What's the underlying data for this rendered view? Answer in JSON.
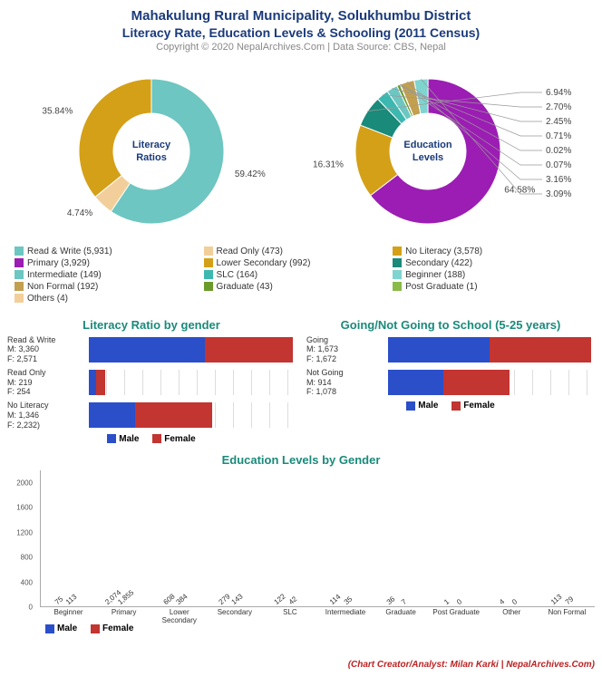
{
  "header": {
    "title1": "Mahakulung Rural Municipality, Solukhumbu District",
    "title2": "Literacy Rate, Education Levels & Schooling (2011 Census)",
    "copyright": "Copyright © 2020 NepalArchives.Com | Data Source: CBS, Nepal"
  },
  "colors": {
    "male": "#2b4ec9",
    "female": "#c23531",
    "grid": "#dddddd"
  },
  "donut1": {
    "center": "Literacy\nRatios",
    "slices": [
      {
        "label": "Read & Write (5,931)",
        "pct": 59.42,
        "color": "#6dc6c1",
        "show": "59.42%"
      },
      {
        "label": "Read Only (473)",
        "pct": 4.74,
        "color": "#f2cf9a",
        "show": "4.74%"
      },
      {
        "label": "No Literacy (3,578)",
        "pct": 35.84,
        "color": "#d4a017",
        "show": "35.84%"
      }
    ]
  },
  "donut2": {
    "center": "Education\nLevels",
    "slices": [
      {
        "label": "Primary (3,929)",
        "pct": 64.58,
        "color": "#9b1db3",
        "show": "64.58%"
      },
      {
        "label": "Lower Secondary (992)",
        "pct": 16.31,
        "color": "#d4a017",
        "show": "16.31%"
      },
      {
        "label": "Secondary (422)",
        "pct": 6.94,
        "color": "#1a8a7a",
        "show": "6.94%"
      },
      {
        "label": "SLC (164)",
        "pct": 2.7,
        "color": "#3db8b0",
        "show": "2.70%"
      },
      {
        "label": "Intermediate (149)",
        "pct": 2.45,
        "color": "#6dc6c1",
        "show": "2.45%"
      },
      {
        "label": "Graduate (43)",
        "pct": 0.71,
        "color": "#6a9a2a",
        "show": "0.71%"
      },
      {
        "label": "Post Graduate (1)",
        "pct": 0.02,
        "color": "#8aba4a",
        "show": "0.02%"
      },
      {
        "label": "Others (4)",
        "pct": 0.07,
        "color": "#f2cf9a",
        "show": "0.07%"
      },
      {
        "label": "Non Formal (192)",
        "pct": 3.16,
        "color": "#c2a050",
        "show": "3.16%"
      },
      {
        "label": "Beginner (188)",
        "pct": 3.09,
        "color": "#7fd4cf",
        "show": "3.09%"
      }
    ]
  },
  "legend_combined": [
    {
      "label": "Read & Write (5,931)",
      "color": "#6dc6c1"
    },
    {
      "label": "Read Only (473)",
      "color": "#f2cf9a"
    },
    {
      "label": "No Literacy (3,578)",
      "color": "#d4a017"
    },
    {
      "label": "Primary (3,929)",
      "color": "#9b1db3"
    },
    {
      "label": "Lower Secondary (992)",
      "color": "#d4a017"
    },
    {
      "label": "Secondary (422)",
      "color": "#1a8a7a"
    },
    {
      "label": "Intermediate (149)",
      "color": "#6dc6c1"
    },
    {
      "label": "SLC (164)",
      "color": "#3db8b0"
    },
    {
      "label": "Beginner (188)",
      "color": "#7fd4cf"
    },
    {
      "label": "Non Formal (192)",
      "color": "#c2a050"
    },
    {
      "label": "Graduate (43)",
      "color": "#6a9a2a"
    },
    {
      "label": "Post Graduate (1)",
      "color": "#8aba4a"
    },
    {
      "label": "Others (4)",
      "color": "#f2cf9a"
    }
  ],
  "hbar1": {
    "title": "Literacy Ratio by gender",
    "max": 6000,
    "rows": [
      {
        "label": "Read & Write\nM: 3,360\nF: 2,571",
        "m": 3360,
        "f": 2571
      },
      {
        "label": "Read Only\nM: 219\nF: 254",
        "m": 219,
        "f": 254
      },
      {
        "label": "No Literacy\nM: 1,346\nF: 2,232)",
        "m": 1346,
        "f": 2232
      }
    ]
  },
  "hbar2": {
    "title": "Going/Not Going to School (5-25 years)",
    "max": 3400,
    "rows": [
      {
        "label": "Going\nM: 1,673\nF: 1,672",
        "m": 1673,
        "f": 1672
      },
      {
        "label": "Not Going\nM: 914\nF: 1,078",
        "m": 914,
        "f": 1078
      }
    ]
  },
  "mini_legend": {
    "male": "Male",
    "female": "Female"
  },
  "vbar": {
    "title": "Education Levels by Gender",
    "ymax": 2200,
    "yticks": [
      0,
      400,
      800,
      1200,
      1600,
      2000
    ],
    "cats": [
      {
        "name": "Beginner",
        "m": 75,
        "f": 113
      },
      {
        "name": "Primary",
        "m": 2074,
        "f": 1855
      },
      {
        "name": "Lower Secondary",
        "m": 608,
        "f": 384
      },
      {
        "name": "Secondary",
        "m": 279,
        "f": 143
      },
      {
        "name": "SLC",
        "m": 122,
        "f": 42
      },
      {
        "name": "Intermediate",
        "m": 114,
        "f": 35
      },
      {
        "name": "Graduate",
        "m": 36,
        "f": 7
      },
      {
        "name": "Post Graduate",
        "m": 1,
        "f": 0
      },
      {
        "name": "Other",
        "m": 4,
        "f": 0
      },
      {
        "name": "Non Formal",
        "m": 113,
        "f": 79
      }
    ]
  },
  "credit": "(Chart Creator/Analyst: Milan Karki | NepalArchives.Com)"
}
